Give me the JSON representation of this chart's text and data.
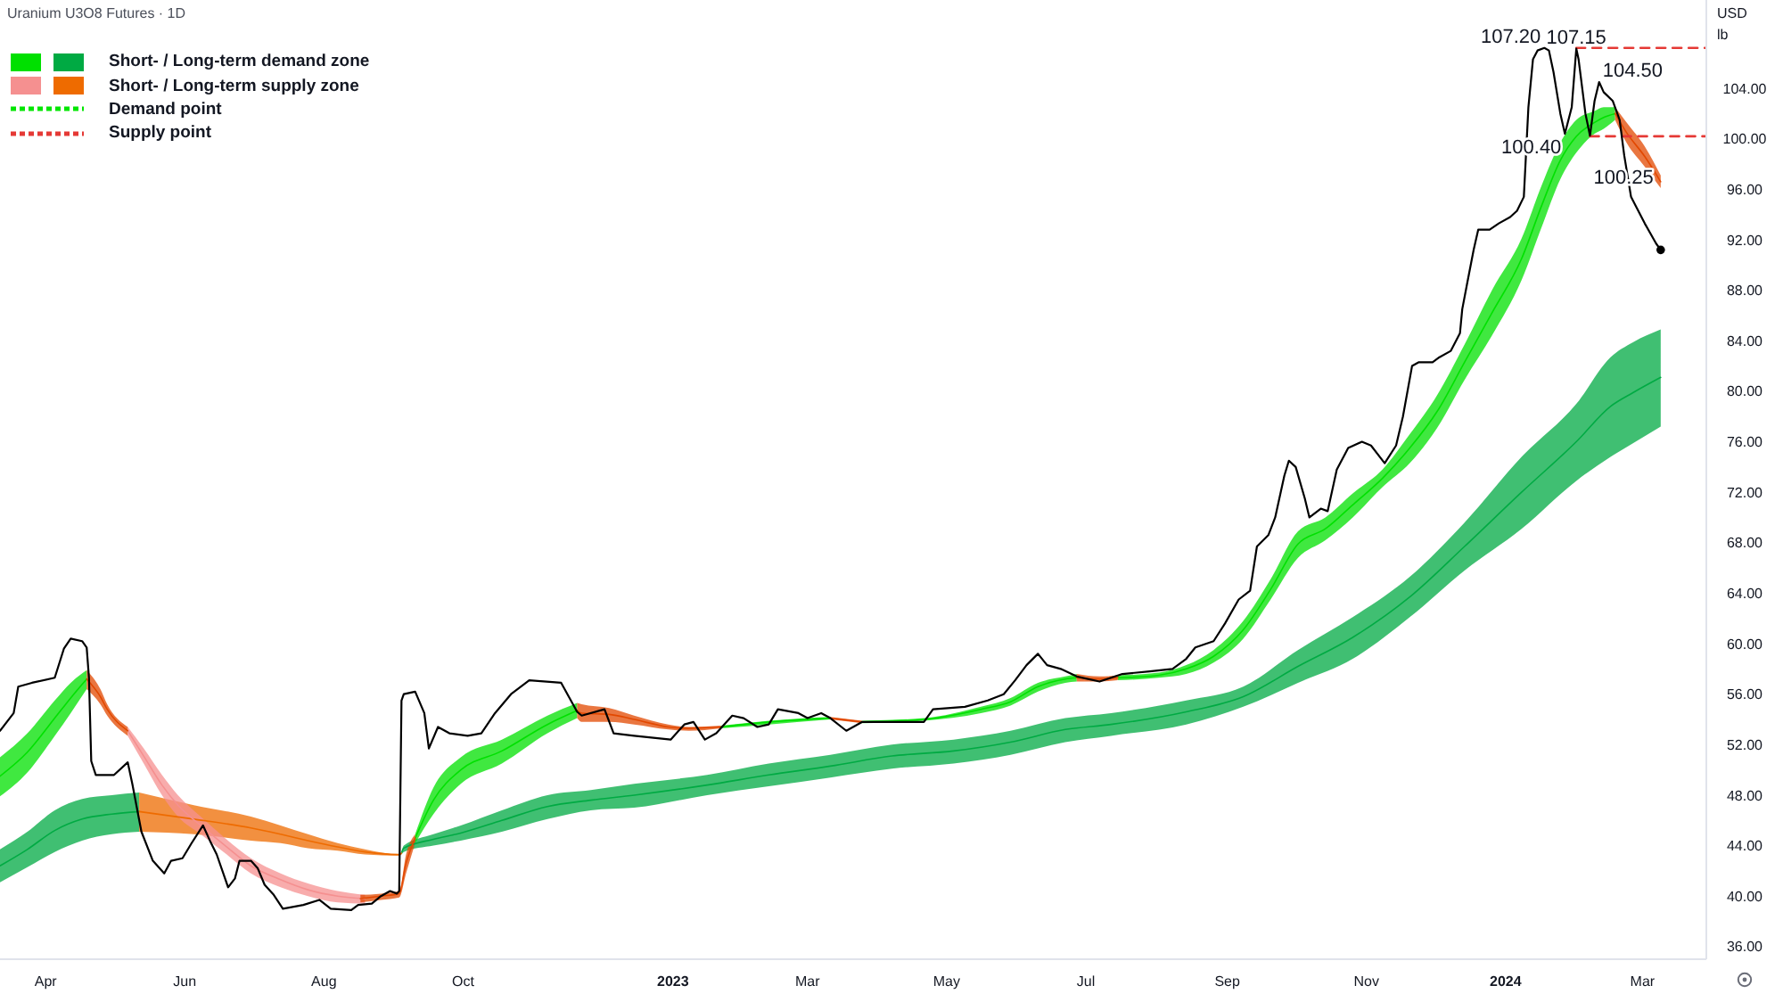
{
  "chart_data": {
    "type": "line",
    "title": "Uranium U3O8 Futures · 1D",
    "ylabel": "USD\nlb",
    "legend": "top left",
    "xlim": [
      "2022-03-12",
      "2024-03-29"
    ],
    "ylim": [
      35,
      111
    ],
    "xticks": [
      {
        "value": "2022-04-01",
        "label": "Apr"
      },
      {
        "value": "2022-06-01",
        "label": "Jun"
      },
      {
        "value": "2022-08-01",
        "label": "Aug"
      },
      {
        "value": "2022-10-01",
        "label": "Oct"
      },
      {
        "value": "2023-01-01",
        "label": "2023"
      },
      {
        "value": "2023-03-01",
        "label": "Mar"
      },
      {
        "value": "2023-05-01",
        "label": "May"
      },
      {
        "value": "2023-07-01",
        "label": "Jul"
      },
      {
        "value": "2023-09-01",
        "label": "Sep"
      },
      {
        "value": "2023-11-01",
        "label": "Nov"
      },
      {
        "value": "2024-01-01",
        "label": "2024"
      },
      {
        "value": "2024-03-01",
        "label": "Mar"
      }
    ],
    "yticks": [
      {
        "value": 36,
        "label": "36.00"
      },
      {
        "value": 40,
        "label": "40.00"
      },
      {
        "value": 44,
        "label": "44.00"
      },
      {
        "value": 48,
        "label": "48.00"
      },
      {
        "value": 52,
        "label": "52.00"
      },
      {
        "value": 56,
        "label": "56.00"
      },
      {
        "value": 60,
        "label": "60.00"
      },
      {
        "value": 64,
        "label": "64.00"
      },
      {
        "value": 68,
        "label": "68.00"
      },
      {
        "value": 72,
        "label": "72.00"
      },
      {
        "value": 76,
        "label": "76.00"
      },
      {
        "value": 80,
        "label": "80.00"
      },
      {
        "value": 84,
        "label": "84.00"
      },
      {
        "value": 88,
        "label": "88.00"
      },
      {
        "value": 92,
        "label": "92.00"
      },
      {
        "value": 96,
        "label": "96.00"
      },
      {
        "value": 100,
        "label": "100.00"
      },
      {
        "value": 104,
        "label": "104.00"
      }
    ],
    "series": [
      {
        "color": "#00e000",
        "x": [
          "2022-03-12",
          "2022-03-24",
          "2022-04-05",
          "2022-04-12",
          "2022-04-19",
          "2022-06-01",
          "2022-09-10",
          "2022-09-18",
          "2022-09-30",
          "2022-10-18",
          "2022-11-07",
          "2022-11-20",
          "2022-12-15",
          "2023-01-22",
          "2023-02-12",
          "2023-03-11",
          "2023-03-18",
          "2023-03-25",
          "2023-04-21",
          "2023-05-16",
          "2023-05-29",
          "2023-06-10",
          "2023-06-22",
          "2023-06-27",
          "2023-07-07",
          "2023-07-15",
          "2023-08-02",
          "2023-08-14",
          "2023-08-26",
          "2023-09-08",
          "2023-09-20",
          "2023-10-02",
          "2023-10-14",
          "2023-10-26",
          "2023-11-08",
          "2023-11-20",
          "2023-12-02",
          "2023-12-14",
          "2023-12-26",
          "2024-01-08",
          "2024-01-17",
          "2024-01-25",
          "2024-02-01",
          "2024-02-09",
          "2024-02-13",
          "2024-02-18"
        ],
        "values": [
          49.5,
          51.4,
          54.1,
          55.7,
          57.2,
          null,
          44.6,
          47.6,
          50.0,
          51.5,
          53.6,
          54.7,
          null,
          53.4,
          53.8,
          54.1,
          null,
          53.8,
          54.0,
          54.8,
          55.4,
          56.6,
          57.2,
          57.3,
          null,
          57.3,
          57.5,
          58.0,
          59.0,
          61.1,
          64.3,
          67.9,
          69.1,
          71.0,
          73.1,
          75.5,
          78.4,
          82.3,
          86.2,
          90.5,
          94.8,
          98.3,
          100.2,
          101.3,
          101.7,
          102.0
        ],
        "lower": [
          47.9,
          49.8,
          52.7,
          54.5,
          56.4,
          null,
          44.2,
          46.5,
          48.9,
          50.5,
          52.9,
          54.1,
          null,
          53.3,
          53.6,
          54.0,
          null,
          53.7,
          53.9,
          54.5,
          55.1,
          56.2,
          56.9,
          57.0,
          null,
          57.1,
          57.3,
          57.6,
          58.5,
          60.4,
          63.5,
          66.8,
          68.2,
          70.0,
          72.4,
          74.3,
          77.1,
          80.9,
          84.4,
          88.8,
          93.1,
          96.8,
          98.9,
          100.4,
          100.8,
          101.5
        ],
        "upper": [
          51.0,
          52.9,
          55.5,
          56.9,
          57.9,
          null,
          44.9,
          48.6,
          51.0,
          52.4,
          54.3,
          55.3,
          null,
          53.5,
          53.9,
          54.2,
          null,
          53.9,
          54.1,
          55.0,
          55.7,
          56.9,
          57.4,
          57.6,
          null,
          57.5,
          57.7,
          58.3,
          59.5,
          61.8,
          65.1,
          68.9,
          70.0,
          71.9,
          73.8,
          76.6,
          79.7,
          83.7,
          88.0,
          92.1,
          96.4,
          99.7,
          101.5,
          102.2,
          102.5,
          102.5
        ]
      },
      {
        "name": "Short- / Long-term demand zone",
        "color": "#00aa43",
        "x": [
          "2022-03-12",
          "2022-03-24",
          "2022-04-05",
          "2022-04-17",
          "2022-04-30",
          "2022-05-12",
          "2022-07-01",
          "2022-09-04",
          "2022-09-05",
          "2022-09-18",
          "2022-09-30",
          "2022-10-18",
          "2022-11-07",
          "2022-11-26",
          "2022-12-15",
          "2023-01-16",
          "2023-02-12",
          "2023-03-11",
          "2023-04-07",
          "2023-05-04",
          "2023-05-29",
          "2023-06-22",
          "2023-07-12",
          "2023-08-14",
          "2023-09-08",
          "2023-10-02",
          "2023-10-26",
          "2023-11-20",
          "2023-12-14",
          "2024-01-08",
          "2024-02-01",
          "2024-02-16",
          "2024-02-26",
          "2024-03-09"
        ],
        "values": [
          42.4,
          43.7,
          45.2,
          46.1,
          46.5,
          46.7,
          null,
          43.4,
          43.8,
          44.5,
          45.0,
          46.0,
          47.1,
          47.6,
          48.0,
          48.8,
          49.6,
          50.3,
          51.1,
          51.5,
          52.2,
          53.2,
          53.6,
          54.6,
          55.8,
          58.2,
          60.5,
          63.7,
          67.7,
          72.0,
          76.0,
          78.8,
          79.9,
          81.1
        ],
        "lower": [
          41.1,
          42.3,
          43.5,
          44.4,
          44.9,
          45.1,
          null,
          43.3,
          43.5,
          44.0,
          44.4,
          45.1,
          46.1,
          46.8,
          47.0,
          48.0,
          48.7,
          49.4,
          50.1,
          50.5,
          51.2,
          52.2,
          52.7,
          53.6,
          55.0,
          56.9,
          58.8,
          62.1,
          65.8,
          69.1,
          72.9,
          74.8,
          75.9,
          77.2
        ],
        "upper": [
          43.7,
          45.1,
          46.8,
          47.7,
          48.0,
          48.2,
          null,
          43.5,
          44.0,
          44.9,
          45.6,
          46.8,
          48.0,
          48.4,
          48.9,
          49.6,
          50.5,
          51.2,
          52.0,
          52.4,
          53.1,
          54.1,
          54.5,
          55.5,
          56.6,
          59.5,
          62.1,
          65.3,
          69.6,
          74.8,
          79.0,
          82.7,
          83.9,
          84.9
        ]
      },
      {
        "color": "#f59090",
        "x": [
          "2022-05-07",
          "2022-05-14",
          "2022-05-22",
          "2022-05-29",
          "2022-06-08",
          "2022-06-18",
          "2022-06-30",
          "2022-07-13",
          "2022-07-25",
          "2022-08-07",
          "2022-08-19"
        ],
        "values": [
          53.1,
          51.1,
          48.8,
          47.2,
          45.6,
          44.1,
          42.4,
          41.3,
          40.5,
          40.0,
          39.8
        ],
        "lower": [
          52.7,
          50.5,
          48.0,
          46.3,
          44.9,
          43.5,
          41.8,
          40.7,
          40.0,
          39.5,
          39.4
        ],
        "upper": [
          53.4,
          51.7,
          49.6,
          48.0,
          46.3,
          44.7,
          43.0,
          41.8,
          41.0,
          40.4,
          40.1
        ]
      },
      {
        "name": "Short- / Long-term supply zone",
        "color": "#ee6b00",
        "x": [
          "2022-05-12",
          "2022-06-05",
          "2022-06-30",
          "2022-07-13",
          "2022-07-25",
          "2022-08-07",
          "2022-08-19",
          "2022-09-03",
          "2022-09-04"
        ],
        "values": [
          46.7,
          46.1,
          45.4,
          44.9,
          44.4,
          43.9,
          43.5,
          43.3,
          43.4
        ],
        "lower": [
          45.1,
          44.9,
          44.4,
          44.2,
          43.8,
          43.6,
          43.3,
          43.2,
          43.3
        ],
        "upper": [
          48.2,
          47.2,
          46.3,
          45.6,
          44.9,
          44.2,
          43.7,
          43.3,
          43.5
        ]
      },
      {
        "color": "#e24800",
        "x": [
          "2022-04-19",
          "2022-04-25",
          "2022-04-28",
          "2022-05-07",
          "2022-06-15",
          "2022-08-17",
          "2022-08-26",
          "2022-09-03",
          "2022-09-06",
          "2022-09-10",
          "2022-10-15",
          "2022-11-20",
          "2022-11-22",
          "2022-12-04",
          "2022-12-15",
          "2022-12-30",
          "2023-01-08",
          "2023-01-22",
          "2023-02-01",
          "2023-03-11",
          "2023-03-25",
          "2023-05-01",
          "2023-06-27",
          "2023-07-07",
          "2023-07-15",
          "2023-10-01",
          "2024-02-18",
          "2024-02-23",
          "2024-03-02",
          "2024-03-09"
        ],
        "values": [
          57.2,
          55.8,
          54.8,
          53.1,
          null,
          39.8,
          40.0,
          40.2,
          42.6,
          44.6,
          null,
          54.7,
          54.5,
          54.4,
          54.0,
          53.4,
          53.3,
          53.4,
          null,
          54.1,
          53.8,
          null,
          57.3,
          57.2,
          57.3,
          null,
          102.0,
          100.5,
          98.6,
          96.6
        ],
        "lower": [
          56.4,
          55.2,
          54.3,
          52.7,
          null,
          39.5,
          39.7,
          39.9,
          41.8,
          44.2,
          null,
          54.1,
          53.8,
          53.8,
          53.6,
          53.2,
          53.1,
          53.3,
          null,
          54.0,
          53.7,
          null,
          57.0,
          57.0,
          57.1,
          null,
          101.5,
          99.7,
          97.8,
          96.1
        ],
        "upper": [
          57.9,
          56.4,
          55.2,
          53.4,
          null,
          40.1,
          40.2,
          40.4,
          43.3,
          44.9,
          null,
          55.3,
          55.2,
          54.9,
          54.3,
          53.6,
          53.4,
          53.5,
          null,
          54.2,
          53.9,
          null,
          57.6,
          57.4,
          57.5,
          null,
          102.5,
          101.3,
          99.4,
          97.1
        ]
      },
      {
        "name": "Demand point",
        "color": "#00e600",
        "line_style": "dashed"
      },
      {
        "name": "Supply point",
        "color": "#e53935",
        "line_style": "dashed",
        "x": [
          "2024-02-01",
          "2024-03-29"
        ],
        "values": [
          107.2,
          107.2
        ]
      },
      {
        "color": "#e53935",
        "line_style": "dashed",
        "x": [
          "2024-02-07",
          "2024-03-29"
        ],
        "values": [
          100.2,
          100.2
        ]
      },
      {
        "color": "#000000",
        "x": [
          "2022-03-12",
          "2022-03-18",
          "2022-03-20",
          "2022-03-26",
          "2022-04-05",
          "2022-04-09",
          "2022-04-12",
          "2022-04-17",
          "2022-04-19",
          "2022-04-20",
          "2022-04-21",
          "2022-04-23",
          "2022-05-01",
          "2022-05-07",
          "2022-05-09",
          "2022-05-13",
          "2022-05-18",
          "2022-05-23",
          "2022-05-26",
          "2022-05-31",
          "2022-06-04",
          "2022-06-09",
          "2022-06-12",
          "2022-06-15",
          "2022-06-20",
          "2022-06-23",
          "2022-06-25",
          "2022-06-30",
          "2022-07-03",
          "2022-07-06",
          "2022-07-10",
          "2022-07-14",
          "2022-07-23",
          "2022-07-30",
          "2022-08-04",
          "2022-08-13",
          "2022-08-16",
          "2022-08-22",
          "2022-08-26",
          "2022-08-30",
          "2022-09-02",
          "2022-09-03",
          "2022-09-04",
          "2022-09-05",
          "2022-09-10",
          "2022-09-14",
          "2022-09-16",
          "2022-09-20",
          "2022-09-25",
          "2022-10-03",
          "2022-10-09",
          "2022-10-15",
          "2022-10-22",
          "2022-10-30",
          "2022-11-13",
          "2022-11-20",
          "2022-11-22",
          "2022-12-02",
          "2022-12-06",
          "2022-12-15",
          "2022-12-31",
          "2023-01-06",
          "2023-01-10",
          "2023-01-15",
          "2023-01-20",
          "2023-01-27",
          "2023-02-01",
          "2023-02-07",
          "2023-02-12",
          "2023-02-16",
          "2023-02-25",
          "2023-03-01",
          "2023-03-07",
          "2023-03-11",
          "2023-03-18",
          "2023-03-25",
          "2023-04-21",
          "2023-04-25",
          "2023-05-09",
          "2023-05-19",
          "2023-05-26",
          "2023-05-31",
          "2023-06-05",
          "2023-06-10",
          "2023-06-14",
          "2023-06-20",
          "2023-06-27",
          "2023-07-07",
          "2023-07-17",
          "2023-07-29",
          "2023-08-08",
          "2023-08-14",
          "2023-08-18",
          "2023-08-26",
          "2023-08-31",
          "2023-09-06",
          "2023-09-11",
          "2023-09-14",
          "2023-09-19",
          "2023-09-22",
          "2023-09-26",
          "2023-09-28",
          "2023-10-01",
          "2023-10-05",
          "2023-10-07",
          "2023-10-12",
          "2023-10-15",
          "2023-10-19",
          "2023-10-24",
          "2023-10-30",
          "2023-11-03",
          "2023-11-09",
          "2023-11-14",
          "2023-11-17",
          "2023-11-21",
          "2023-11-24",
          "2023-11-30",
          "2023-12-03",
          "2023-12-08",
          "2023-12-12",
          "2023-12-13",
          "2023-12-15",
          "2023-12-18",
          "2023-12-20",
          "2023-12-25",
          "2023-12-29",
          "2024-01-03",
          "2024-01-06",
          "2024-01-09",
          "2024-01-11",
          "2024-01-13",
          "2024-01-15",
          "2024-01-18",
          "2024-01-20",
          "2024-01-22",
          "2024-01-25",
          "2024-01-27",
          "2024-01-30",
          "2024-02-01",
          "2024-02-02",
          "2024-02-05",
          "2024-02-07",
          "2024-02-09",
          "2024-02-11",
          "2024-02-13",
          "2024-02-17",
          "2024-02-20",
          "2024-02-22",
          "2024-02-25",
          "2024-02-27",
          "2024-03-02",
          "2024-03-07",
          "2024-03-09"
        ],
        "values": [
          53.1,
          54.5,
          56.6,
          56.9,
          57.3,
          59.6,
          60.4,
          60.2,
          59.7,
          57.3,
          50.7,
          49.6,
          49.6,
          50.6,
          48.9,
          45.1,
          42.8,
          41.8,
          42.8,
          43.0,
          44.2,
          45.6,
          44.4,
          43.3,
          40.7,
          41.4,
          42.8,
          42.8,
          42.2,
          40.9,
          40.1,
          39.0,
          39.3,
          39.7,
          39.0,
          38.9,
          39.3,
          39.4,
          40.0,
          40.4,
          40.2,
          40.4,
          55.5,
          56.0,
          56.2,
          54.5,
          51.7,
          53.4,
          52.9,
          52.7,
          52.9,
          54.5,
          56.0,
          57.1,
          56.9,
          54.6,
          54.3,
          54.8,
          52.9,
          52.7,
          52.4,
          53.6,
          53.8,
          52.4,
          52.9,
          54.3,
          54.1,
          53.4,
          53.6,
          54.8,
          54.5,
          54.1,
          54.5,
          54.1,
          53.1,
          53.8,
          53.8,
          54.8,
          55.0,
          55.5,
          56.0,
          57.1,
          58.3,
          59.2,
          58.3,
          58.0,
          57.4,
          57.0,
          57.6,
          57.8,
          58.0,
          58.8,
          59.7,
          60.2,
          61.6,
          63.5,
          64.2,
          67.7,
          68.6,
          70.0,
          73.3,
          74.5,
          74.0,
          71.5,
          70.0,
          70.7,
          70.5,
          73.8,
          75.5,
          76.0,
          75.7,
          74.3,
          75.7,
          78.0,
          82.0,
          82.3,
          82.3,
          82.7,
          83.2,
          84.6,
          86.5,
          88.4,
          91.2,
          92.8,
          92.8,
          93.3,
          93.8,
          94.3,
          95.4,
          102.5,
          106.3,
          107.0,
          107.2,
          107.0,
          105.3,
          102.0,
          100.4,
          102.5,
          107.15,
          106.3,
          102.0,
          100.25,
          103.0,
          104.5,
          103.7,
          103.0,
          101.5,
          98.7,
          95.4,
          94.7,
          93.3,
          91.7,
          91.2
        ]
      },
      {
        "type": "scatter",
        "color": "#000000",
        "marker": "circle",
        "x": [
          "2024-03-09"
        ],
        "values": [
          91.2
        ]
      }
    ],
    "annotations": [
      {
        "text": "107.20",
        "x": "2024-01-18",
        "y": 107.2
      },
      {
        "text": "107.15",
        "x": "2024-02-01",
        "y": 107.15
      },
      {
        "text": "104.50",
        "x": "2024-02-11",
        "y": 104.5
      },
      {
        "text": "100.40",
        "x": "2024-01-27",
        "y": 100.4
      },
      {
        "text": "100.25",
        "x": "2024-02-07",
        "y": 100.25
      }
    ]
  }
}
